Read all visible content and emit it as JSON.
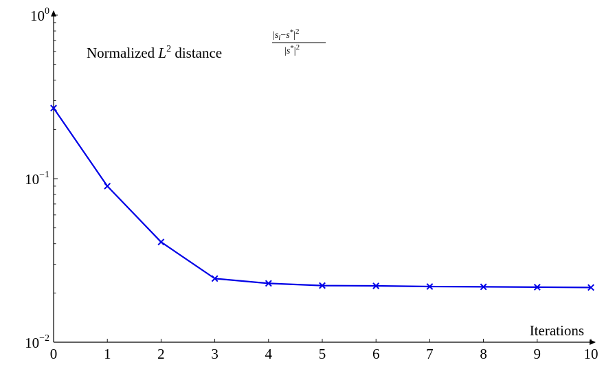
{
  "chart_data": {
    "type": "line",
    "scale": {
      "y": "log"
    },
    "x": [
      0,
      1,
      2,
      3,
      4,
      5,
      6,
      7,
      8,
      9,
      10
    ],
    "series": [
      {
        "values": [
          0.27,
          0.09,
          0.041,
          0.0245,
          0.0229,
          0.0222,
          0.0221,
          0.0219,
          0.0218,
          0.0217,
          0.0216
        ],
        "color": "#0000e6",
        "marker": "x"
      }
    ],
    "xlim": [
      0,
      10
    ],
    "ylim": [
      0.01,
      1
    ],
    "xticks": [
      0,
      1,
      2,
      3,
      4,
      5,
      6,
      7,
      8,
      9,
      10
    ],
    "xtick_labels": [
      "0",
      "1",
      "2",
      "3",
      "4",
      "5",
      "6",
      "7",
      "8",
      "9",
      "10"
    ],
    "yticks": [
      {
        "value": 0.01,
        "base": "10",
        "exp": "−2"
      },
      {
        "value": 0.1,
        "base": "10",
        "exp": "−1"
      },
      {
        "value": 1,
        "base": "10",
        "exp": "0"
      }
    ],
    "xlabel": "Iterations",
    "ylabel": {
      "prefix": "Normalized ",
      "L": "L",
      "L_exp": "2",
      "suffix": " distance",
      "num_left": "|",
      "num_si": "s",
      "num_i": "i",
      "num_minus": "−",
      "num_s": "s",
      "num_star": "*",
      "num_right": "|",
      "num_exp": "2",
      "den_left": "|",
      "den_s": "s",
      "den_star": "*",
      "den_right": "|",
      "den_exp": "2"
    },
    "grid": false
  }
}
